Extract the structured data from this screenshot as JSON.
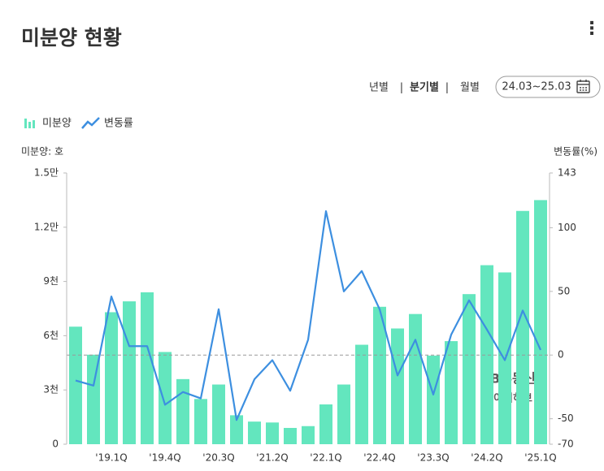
{
  "header": {
    "title": "미분양 현황",
    "menu": "⋮"
  },
  "controls": {
    "periods": [
      "년별",
      "분기별",
      "월별"
    ],
    "active_period": 1,
    "separator": "|",
    "date_range": "24.03~25.03"
  },
  "chart_data": {
    "type": "bar_line",
    "y_axis_label": "미분양: 호",
    "y2_axis_label": "변동률(%)",
    "watermark": [
      "KB부동산",
      "데이터허브"
    ],
    "categories": [
      null,
      null,
      "'19.1Q",
      null,
      null,
      "'19.4Q",
      null,
      null,
      "'20.3Q",
      null,
      null,
      "'21.2Q",
      null,
      null,
      "'22.1Q",
      null,
      null,
      "'22.4Q",
      null,
      null,
      "'23.3Q",
      null,
      null,
      "'24.2Q",
      null,
      null,
      "'25.1Q"
    ],
    "series": [
      {
        "name": "미분양",
        "type": "bar",
        "color": "#63e6be",
        "values": [
          6500,
          4950,
          7300,
          7900,
          8400,
          5100,
          3600,
          2500,
          3300,
          1600,
          1250,
          1200,
          900,
          1000,
          2200,
          3300,
          5500,
          7600,
          6400,
          7200,
          4900,
          5700,
          8300,
          9900,
          9500,
          12900,
          13500
        ]
      },
      {
        "name": "변동률",
        "type": "line",
        "axis": "y2",
        "color": "#3d8fe0",
        "values": [
          -20,
          -24,
          46,
          7,
          7,
          -39,
          -29,
          -34,
          36,
          -51,
          -19,
          -4,
          -28,
          12,
          113,
          50,
          66,
          36,
          -16,
          12,
          -31,
          16,
          43,
          20,
          -4,
          35,
          4
        ]
      }
    ],
    "ylim": [
      0,
      15000
    ],
    "yticks": [
      0,
      {
        "value": 3000,
        "label": "3천"
      },
      {
        "value": 6000,
        "label": "6천"
      },
      {
        "value": 9000,
        "label": "9천"
      },
      {
        "value": 12000,
        "label": "1.2만"
      },
      {
        "value": 15000,
        "label": "1.5만"
      }
    ],
    "y2lim": [
      -70,
      143
    ],
    "y2ticks": [
      -70,
      -50,
      0,
      50,
      100,
      143
    ],
    "zero_line": true
  }
}
